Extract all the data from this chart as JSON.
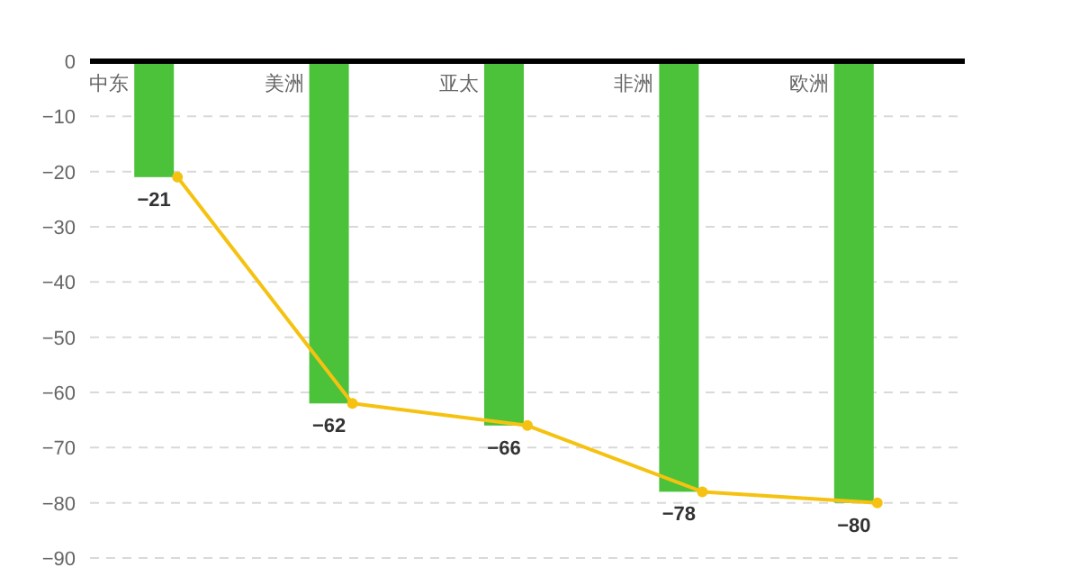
{
  "chart_data": {
    "type": "bar",
    "categories": [
      "中东",
      "美洲",
      "亚太",
      "非洲",
      "欧洲"
    ],
    "series": [
      {
        "color": "#4cc13a",
        "values": [
          -21,
          -62,
          -66,
          -78,
          -80
        ],
        "value_labels": [
          "−21",
          "−62",
          "−66",
          "−78",
          "−80"
        ]
      },
      {
        "type": "line",
        "color": "#f5c211",
        "values": [
          -21,
          -62,
          -66,
          -78,
          -80
        ]
      }
    ],
    "ylim": [
      -90,
      0
    ],
    "yticks": [
      0,
      {
        "value": -10,
        "label": "−10"
      },
      {
        "value": -20,
        "label": "−20"
      },
      {
        "value": -30,
        "label": "−30"
      },
      {
        "value": -40,
        "label": "−40"
      },
      {
        "value": -50,
        "label": "−50"
      },
      {
        "value": -60,
        "label": "−60"
      },
      {
        "value": -70,
        "label": "−70"
      },
      {
        "value": -80,
        "label": "−80"
      },
      {
        "value": -90,
        "label": "−90"
      }
    ],
    "grid": "y",
    "marker": "circle",
    "line_style": "solid"
  }
}
